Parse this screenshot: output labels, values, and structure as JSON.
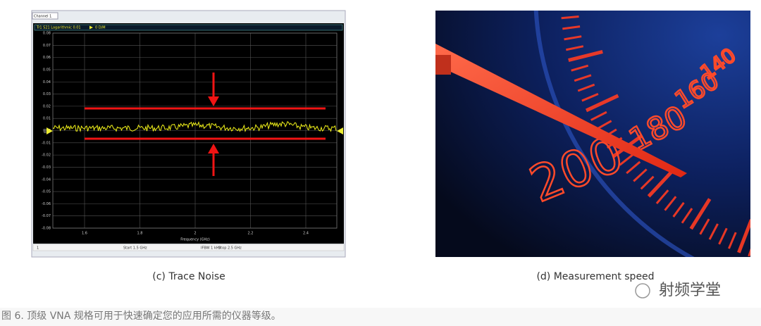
{
  "left_panel": {
    "tab": "Channel 1",
    "header": "Tr1  S21  Logarithmic  0.01",
    "header_right": "0  D/M",
    "y_label": "dB",
    "y_ticks": [
      "0.08",
      "0.07",
      "0.06",
      "0.05",
      "0.04",
      "0.03",
      "0.02",
      "0.01",
      "0",
      "-0.01",
      "-0.02",
      "-0.03",
      "-0.04",
      "-0.05",
      "-0.06",
      "-0.07",
      "-0.08"
    ],
    "x_ticks": [
      "1.6",
      "1.8",
      "2",
      "2.2",
      "2.4"
    ],
    "x_label": "Frequency (GHz)",
    "status": [
      "1",
      "Start 1.5 GHz",
      "IFBW 1 kHz",
      "Stop 2.5 GHz"
    ]
  },
  "right_panel": {
    "dial_labels": [
      "200",
      "180",
      "160",
      "140"
    ]
  },
  "captions": [
    "(c) Trace Noise",
    "(d) Measurement speed"
  ],
  "watermark": "射频学堂",
  "figure_caption": "图 6. 顶级 VNA 规格可用于快速确定您的应用所需的仪器等级。"
}
